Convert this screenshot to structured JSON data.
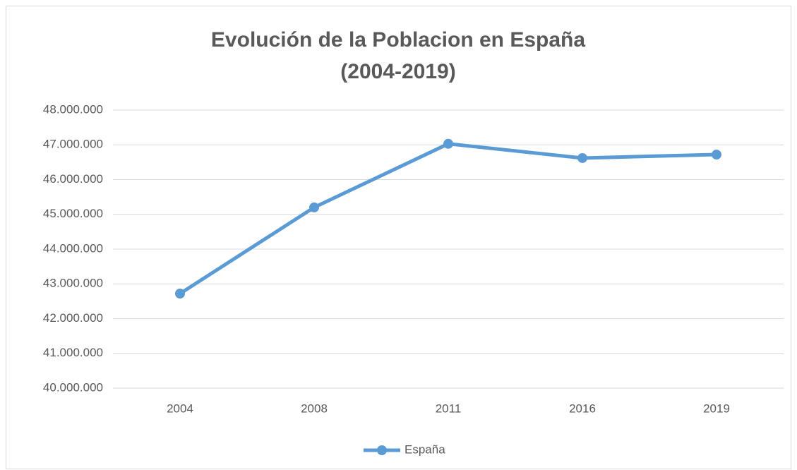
{
  "chart_data": {
    "type": "line",
    "title": [
      "Evolución de la Poblacion en España",
      "(2004-2019)"
    ],
    "categories": [
      "2004",
      "2008",
      "2011",
      "2016",
      "2019"
    ],
    "series": [
      {
        "name": "España",
        "color": "#5b9bd5",
        "values": [
          42720000,
          45200000,
          47030000,
          46620000,
          46720000
        ]
      }
    ],
    "ylim": [
      40000000,
      48000000
    ],
    "yticks": [
      {
        "value": 40000000,
        "label": "40.000.000"
      },
      {
        "value": 41000000,
        "label": "41.000.000"
      },
      {
        "value": 42000000,
        "label": "42.000.000"
      },
      {
        "value": 43000000,
        "label": "43.000.000"
      },
      {
        "value": 44000000,
        "label": "44.000.000"
      },
      {
        "value": 45000000,
        "label": "45.000.000"
      },
      {
        "value": 46000000,
        "label": "46.000.000"
      },
      {
        "value": 47000000,
        "label": "47.000.000"
      },
      {
        "value": 48000000,
        "label": "48.000.000"
      }
    ],
    "grid": true,
    "legend": "bottom"
  }
}
